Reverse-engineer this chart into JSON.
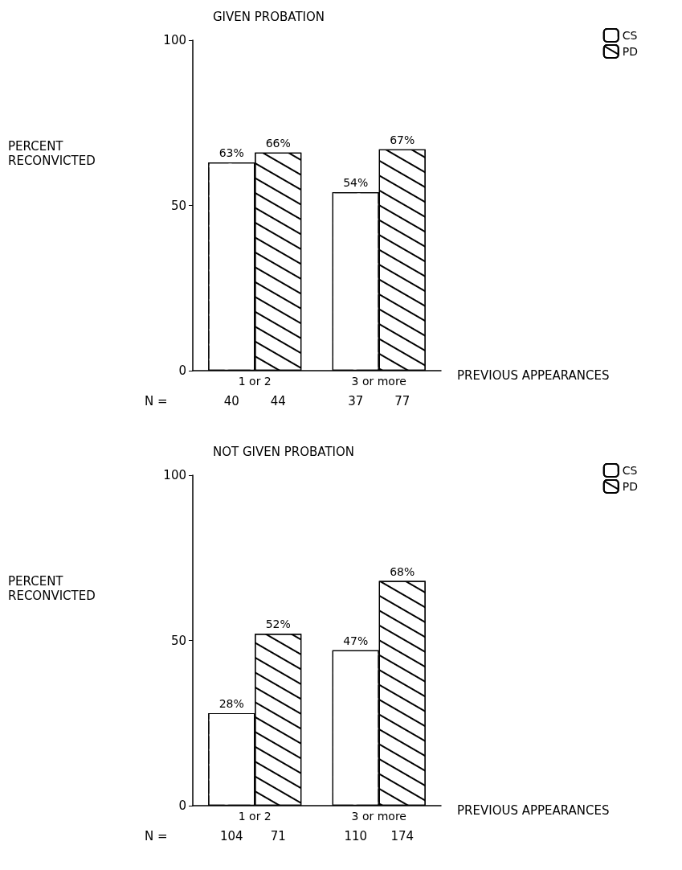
{
  "chart_data": [
    {
      "type": "bar",
      "title": "GIVEN PROBATION",
      "xlabel": "PREVIOUS APPEARANCES",
      "ylabel": "PERCENT RECONVICTED",
      "categories": [
        "1 or 2",
        "3 or more"
      ],
      "series": [
        {
          "name": "CS",
          "color": "#ffffff",
          "values": [
            63,
            54
          ],
          "value_labels": [
            "63%",
            "54%"
          ]
        },
        {
          "name": "PD",
          "color": "#000000",
          "values": [
            66,
            67
          ],
          "value_labels": [
            "66%",
            "67%"
          ]
        }
      ],
      "ylim": [
        0,
        100
      ],
      "yticks": [
        0,
        50,
        100
      ],
      "grid": false,
      "legend": "top right",
      "annotations": [
        "N =",
        "40",
        "44",
        "37",
        "77"
      ]
    },
    {
      "type": "bar",
      "title": "NOT GIVEN PROBATION",
      "xlabel": "PREVIOUS APPEARANCES",
      "ylabel": "PERCENT RECONVICTED",
      "categories": [
        "1 or 2",
        "3 or more"
      ],
      "series": [
        {
          "name": "CS",
          "color": "#ffffff",
          "values": [
            28,
            47
          ],
          "value_labels": [
            "28%",
            "47%"
          ]
        },
        {
          "name": "PD",
          "color": "#000000",
          "values": [
            52,
            68
          ],
          "value_labels": [
            "52%",
            "68%"
          ]
        }
      ],
      "ylim": [
        0,
        100
      ],
      "yticks": [
        0,
        50,
        100
      ],
      "grid": false,
      "legend": "top right",
      "annotations": [
        "N =",
        "104",
        "71",
        "110",
        "174"
      ]
    }
  ]
}
